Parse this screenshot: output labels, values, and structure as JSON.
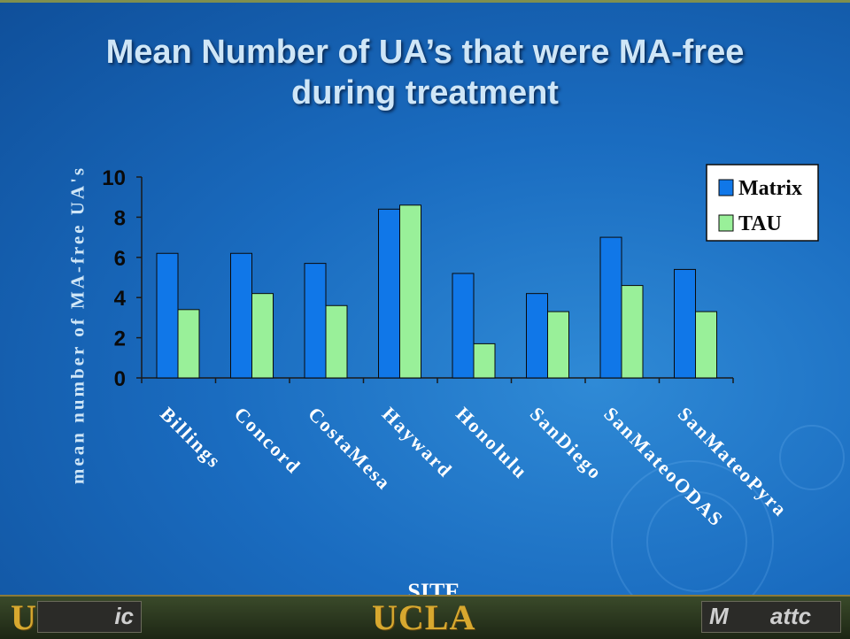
{
  "title_lines": [
    "Mean Number of UA’s that were MA-free",
    "during treatment"
  ],
  "footer": {
    "left_logo": "UCLA",
    "center_logo": "UCLA",
    "left_box_text": "ic",
    "right_box_text": "attc",
    "right_box_prefix": "M"
  },
  "colors": {
    "matrix": "#1077e8",
    "tau": "#99f099",
    "axis": "#1a1a1a",
    "plot_bg": "#ffffff"
  },
  "chart_data": {
    "type": "bar",
    "title": "Mean Number of UA’s that were MA-free during treatment",
    "xlabel": "SITE",
    "ylabel": "mean number of MA-free UA's",
    "ylim": [
      0,
      10
    ],
    "yticks": [
      0,
      2,
      4,
      6,
      8,
      10
    ],
    "categories": [
      "Billings",
      "Concord",
      "CostaMesa",
      "Hayward",
      "Honolulu",
      "SanDiego",
      "SanMateoODAS",
      "SanMateoPyra"
    ],
    "series": [
      {
        "name": "Matrix",
        "values": [
          6.2,
          6.2,
          5.7,
          8.4,
          5.2,
          4.2,
          7.0,
          5.4
        ]
      },
      {
        "name": "TAU",
        "values": [
          3.4,
          4.2,
          3.6,
          8.6,
          1.7,
          3.3,
          4.6,
          3.3
        ]
      }
    ],
    "legend_position": "top-right",
    "grid": false
  }
}
